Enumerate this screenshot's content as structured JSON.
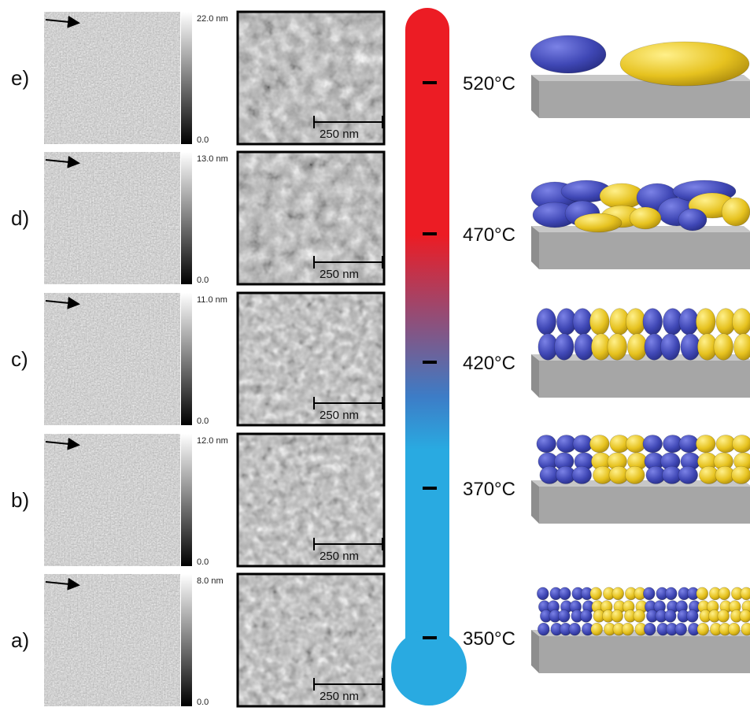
{
  "rows": [
    {
      "label": "e)",
      "scale_max": "22.0 nm",
      "scale_min": "0.0",
      "scale_bar": "250 nm",
      "temperature": "520°C",
      "stage": 4
    },
    {
      "label": "d)",
      "scale_max": "13.0 nm",
      "scale_min": "0.0",
      "scale_bar": "250 nm",
      "temperature": "470°C",
      "stage": 3
    },
    {
      "label": "c)",
      "scale_max": "11.0 nm",
      "scale_min": "0.0",
      "scale_bar": "250 nm",
      "temperature": "420°C",
      "stage": 2
    },
    {
      "label": "b)",
      "scale_max": "12.0 nm",
      "scale_min": "0.0",
      "scale_bar": "250 nm",
      "temperature": "370°C",
      "stage": 1
    },
    {
      "label": "a)",
      "scale_max": "8.0 nm",
      "scale_min": "0.0",
      "scale_bar": "250 nm",
      "temperature": "350°C",
      "stage": 0
    }
  ],
  "colors": {
    "thermo_hot": "#ec1c24",
    "thermo_cold": "#29aae1",
    "grain_blue": "#3f47b5",
    "grain_yellow": "#e6c21f",
    "substrate": "#a6a6a6"
  },
  "icons": {
    "scan_arrow": "arrow-right-icon",
    "thermometer": "thermometer-icon"
  }
}
